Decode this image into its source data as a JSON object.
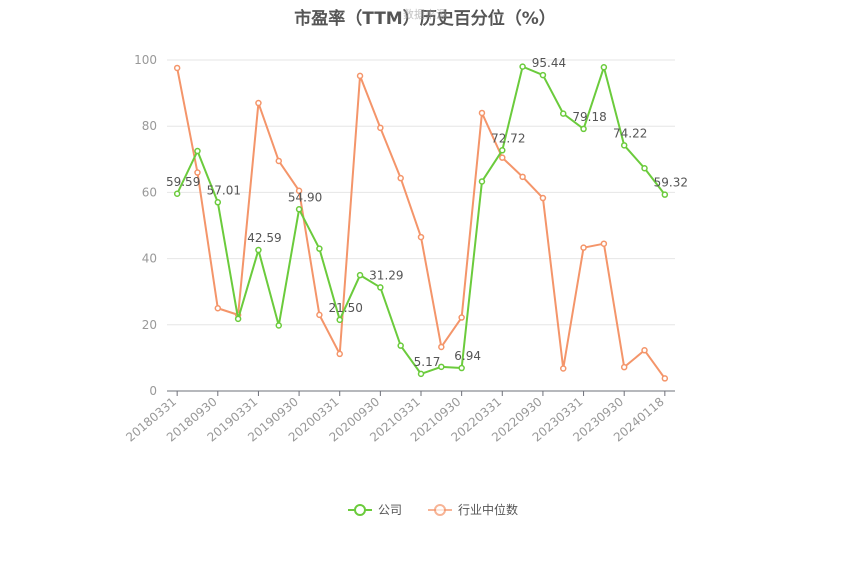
{
  "chart_data": {
    "type": "line",
    "title": "市盈率（TTM）历史百分位（%）",
    "watermark": "数据来源",
    "ylim": [
      0,
      100
    ],
    "yticks": [
      0,
      20,
      40,
      60,
      80,
      100
    ],
    "grid": true,
    "legend_position": "bottom",
    "x": [
      "20180331",
      "20180630",
      "20180930",
      "20181231",
      "20190331",
      "20190630",
      "20190930",
      "20191231",
      "20200331",
      "20200630",
      "20200930",
      "20201231",
      "20210331",
      "20210630",
      "20210930",
      "20211231",
      "20220331",
      "20220630",
      "20220930",
      "20221231",
      "20230331",
      "20230630",
      "20230930",
      "20231231",
      "20240118"
    ],
    "xtick_labels": [
      "20180331",
      "20180930",
      "20190331",
      "20190930",
      "20200331",
      "20200930",
      "20210331",
      "20210930",
      "20220331",
      "20220930",
      "20230331",
      "20230930",
      "20240118"
    ],
    "series": [
      {
        "name": "公司",
        "color": "#6bcb3c",
        "values": [
          59.59,
          72.5,
          57.01,
          21.8,
          42.59,
          19.8,
          54.9,
          43.0,
          21.5,
          35.0,
          31.29,
          13.7,
          5.17,
          7.3,
          6.94,
          63.3,
          72.72,
          98.0,
          95.44,
          83.8,
          79.18,
          97.8,
          74.22,
          67.3,
          59.32
        ],
        "labels": {
          "0": "59.59",
          "2": "57.01",
          "4": "42.59",
          "6": "54.90",
          "8": "21.50",
          "10": "31.29",
          "12": "5.17",
          "14": "6.94",
          "16": "72.72",
          "18": "95.44",
          "20": "79.18",
          "22": "74.22",
          "24": "59.32"
        }
      },
      {
        "name": "行业中位数",
        "color": "#f4956a",
        "values": [
          97.6,
          66.0,
          25.0,
          23.0,
          87.0,
          69.5,
          60.5,
          23.0,
          11.2,
          95.2,
          79.5,
          64.3,
          46.5,
          13.3,
          22.2,
          84.0,
          70.5,
          64.7,
          58.3,
          6.8,
          43.3,
          44.5,
          7.2,
          12.3,
          3.8
        ]
      }
    ]
  }
}
